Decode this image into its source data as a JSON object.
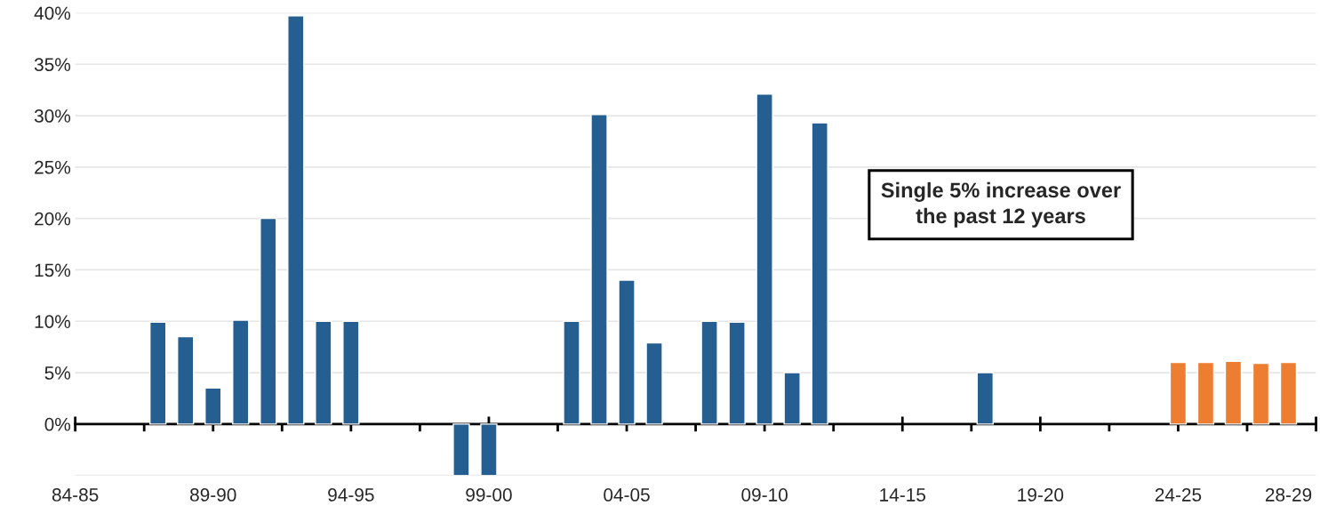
{
  "chart_data": {
    "type": "bar",
    "categories": [
      "84-85",
      null,
      null,
      null,
      null,
      "89-90",
      null,
      null,
      null,
      null,
      "94-95",
      null,
      null,
      null,
      null,
      "99-00",
      null,
      null,
      null,
      null,
      "04-05",
      null,
      null,
      null,
      null,
      "09-10",
      null,
      null,
      null,
      null,
      "14-15",
      null,
      null,
      null,
      null,
      "19-20",
      null,
      null,
      null,
      null,
      "24-25",
      null,
      null,
      null,
      "28-29"
    ],
    "values": [
      null,
      null,
      null,
      9.9,
      8.5,
      3.5,
      10.1,
      20.0,
      39.7,
      10.0,
      10.0,
      null,
      null,
      null,
      -5.0,
      -5.0,
      null,
      null,
      10.0,
      30.1,
      14.0,
      7.9,
      null,
      10.0,
      9.9,
      32.1,
      5.0,
      29.3,
      null,
      null,
      null,
      null,
      null,
      5.0,
      null,
      null,
      null,
      null,
      null,
      null,
      6.0,
      6.0,
      6.1,
      5.9,
      6.0
    ],
    "colors": [
      "#255e91",
      "#255e91",
      "#255e91",
      "#255e91",
      "#255e91",
      "#255e91",
      "#255e91",
      "#255e91",
      "#255e91",
      "#255e91",
      "#255e91",
      "#255e91",
      "#255e91",
      "#255e91",
      "#255e91",
      "#255e91",
      "#255e91",
      "#255e91",
      "#255e91",
      "#255e91",
      "#255e91",
      "#255e91",
      "#255e91",
      "#255e91",
      "#255e91",
      "#255e91",
      "#255e91",
      "#255e91",
      "#255e91",
      "#255e91",
      "#255e91",
      "#255e91",
      "#255e91",
      "#255e91",
      "#255e91",
      "#255e91",
      "#255e91",
      "#255e91",
      "#255e91",
      "#255e91",
      "#ed7d31",
      "#ed7d31",
      "#ed7d31",
      "#ed7d31",
      "#ed7d31"
    ],
    "ylim": [
      -5,
      40
    ],
    "yticks": [
      {
        "value": -5,
        "label": null
      },
      {
        "value": 0,
        "label": "0%"
      },
      {
        "value": 5,
        "label": "5%"
      },
      {
        "value": 10,
        "label": "10%"
      },
      {
        "value": 15,
        "label": "15%"
      },
      {
        "value": 20,
        "label": "20%"
      },
      {
        "value": 25,
        "label": "25%"
      },
      {
        "value": 30,
        "label": "30%"
      },
      {
        "value": 35,
        "label": "35%"
      },
      {
        "value": 40,
        "label": "40%"
      }
    ],
    "grid": "y",
    "annotations": [
      "Single 5% increase over\nthe past 12 years"
    ]
  }
}
